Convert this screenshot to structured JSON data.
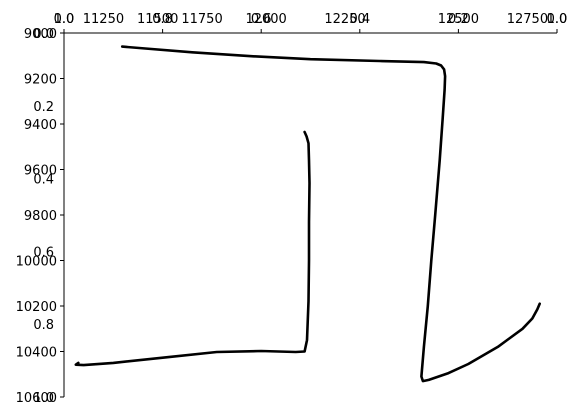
{
  "chart_data": {
    "type": "line",
    "title": "",
    "xlabel": "",
    "ylabel": "",
    "orientation": "mirrored (x reversed, y inverted)",
    "grid": false,
    "legend": "none",
    "xlim": [
      1.0,
      0.0
    ],
    "ylim": [
      9000,
      10600
    ],
    "y_ticks": [
      {
        "value": 9000,
        "label": "9000"
      },
      {
        "value": 9200,
        "label": "9200"
      },
      {
        "value": 9400,
        "label": "9400"
      },
      {
        "value": 9600,
        "label": "9600"
      },
      {
        "value": 9800,
        "label": "9800"
      },
      {
        "value": 10000,
        "label": "10000"
      },
      {
        "value": 10200,
        "label": "10200"
      },
      {
        "value": 10400,
        "label": "10400"
      },
      {
        "value": 10600,
        "label": "10600"
      }
    ],
    "x_ticks": [
      {
        "value": 0.0,
        "label": "0.0"
      },
      {
        "value": 0.2,
        "label": "0.2"
      },
      {
        "value": 0.4,
        "label": "0.4"
      },
      {
        "value": 0.6,
        "label": "0.6"
      },
      {
        "value": 0.8,
        "label": "0.8"
      },
      {
        "value": 1.0,
        "label": "1.0"
      }
    ],
    "overlay_x_ticks": [
      {
        "value": 0.0,
        "label": "0.0"
      },
      {
        "value": 0.08,
        "label": "11250"
      },
      {
        "value": 0.19,
        "label": "11500"
      },
      {
        "value": 0.28,
        "label": "11750"
      },
      {
        "value": 0.41,
        "label": "12000"
      },
      {
        "value": 0.57,
        "label": "12250"
      },
      {
        "value": 0.8,
        "label": "12500"
      },
      {
        "value": 0.94,
        "label": "12750"
      },
      {
        "value": 1.0,
        "label": "1.0"
      }
    ],
    "overlay_y_ticks": [
      {
        "value": 0.0,
        "label": "0.0"
      },
      {
        "value": 0.2,
        "label": "0.2"
      },
      {
        "value": 0.4,
        "label": "0.4"
      },
      {
        "value": 0.6,
        "label": "0.6"
      },
      {
        "value": 0.8,
        "label": "0.8"
      },
      {
        "value": 1.0,
        "label": "1.0"
      }
    ],
    "series": [
      {
        "color": "#000000",
        "points": [
          [
            0.882,
            9060
          ],
          [
            0.835,
            9068
          ],
          [
            0.74,
            9085
          ],
          [
            0.62,
            9102
          ],
          [
            0.5,
            9115
          ],
          [
            0.36,
            9123
          ],
          [
            0.27,
            9128
          ],
          [
            0.245,
            9134
          ],
          [
            0.235,
            9143
          ],
          [
            0.229,
            9160
          ],
          [
            0.227,
            9190
          ],
          [
            0.228,
            9250
          ],
          [
            0.232,
            9380
          ],
          [
            0.238,
            9560
          ],
          [
            0.247,
            9800
          ],
          [
            0.255,
            10000
          ],
          [
            0.262,
            10200
          ],
          [
            0.27,
            10380
          ],
          [
            0.275,
            10510
          ],
          [
            0.272,
            10530
          ],
          [
            0.26,
            10525
          ],
          [
            0.22,
            10495
          ],
          [
            0.18,
            10455
          ],
          [
            0.12,
            10380
          ],
          [
            0.07,
            10300
          ],
          [
            0.05,
            10255
          ],
          [
            0.04,
            10215
          ],
          [
            0.035,
            10190
          ]
        ]
      },
      {
        "color": "#000000",
        "points": [
          [
            0.512,
            9435
          ],
          [
            0.508,
            9455
          ],
          [
            0.504,
            9485
          ],
          [
            0.503,
            9560
          ],
          [
            0.502,
            9660
          ],
          [
            0.503,
            9830
          ],
          [
            0.503,
            10000
          ],
          [
            0.504,
            10180
          ],
          [
            0.507,
            10350
          ],
          [
            0.512,
            10400
          ],
          [
            0.53,
            10402
          ],
          [
            0.6,
            10398
          ],
          [
            0.69,
            10402
          ],
          [
            0.79,
            10425
          ],
          [
            0.9,
            10450
          ],
          [
            0.96,
            10460
          ],
          [
            0.976,
            10458
          ],
          [
            0.971,
            10450
          ]
        ]
      }
    ]
  }
}
